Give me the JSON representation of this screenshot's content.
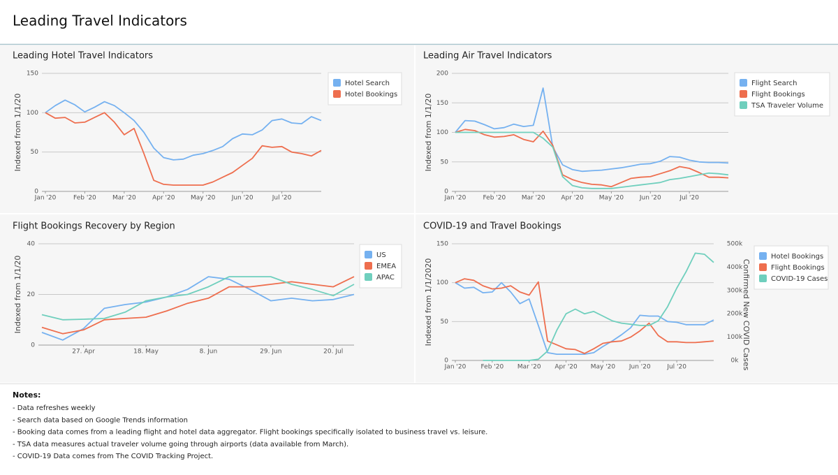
{
  "header": {
    "title": "Leading Travel Indicators"
  },
  "chart_data": [
    {
      "type": "line",
      "title": "Leading Hotel Travel Indicators",
      "y_label": "Indexed from 1/1/20",
      "categories": [
        "Jan '20",
        null,
        null,
        null,
        "Feb '20",
        null,
        null,
        null,
        "Mar '20",
        null,
        null,
        null,
        "Apr '20",
        null,
        null,
        null,
        "May '20",
        null,
        null,
        null,
        "Jun '20",
        null,
        null,
        null,
        "Jul '20",
        null,
        null,
        null,
        null
      ],
      "series": [
        {
          "name": "Hotel Search",
          "color": "#75b1f0",
          "values": [
            100,
            109,
            116,
            110,
            101,
            107,
            114,
            109,
            100,
            90,
            75,
            55,
            43,
            40,
            41,
            46,
            48,
            52,
            57,
            67,
            73,
            72,
            78,
            90,
            92,
            87,
            86,
            95,
            90
          ]
        },
        {
          "name": "Hotel Bookings",
          "color": "#ee6e4e",
          "values": [
            100,
            93,
            94,
            87,
            88,
            94,
            100,
            88,
            72,
            80,
            48,
            14,
            9,
            8,
            8,
            8,
            8,
            12,
            18,
            24,
            33,
            42,
            58,
            56,
            57,
            50,
            48,
            45,
            52
          ]
        }
      ],
      "ylim": [
        0,
        150
      ],
      "yticks": [
        0,
        50,
        100,
        150
      ],
      "grid": true,
      "legend": "right"
    },
    {
      "type": "line",
      "title": "Leading Air Travel Indicators",
      "y_label": "Indexed from 1/1/20",
      "categories": [
        "Jan '20",
        null,
        null,
        null,
        "Feb '20",
        null,
        null,
        null,
        "Mar '20",
        null,
        null,
        null,
        "Apr '20",
        null,
        null,
        null,
        "May '20",
        null,
        null,
        null,
        "Jun '20",
        null,
        null,
        null,
        "Jul '20",
        null,
        null,
        null,
        null
      ],
      "series": [
        {
          "name": "Flight Search",
          "color": "#75b1f0",
          "values": [
            100,
            120,
            119,
            113,
            106,
            108,
            114,
            110,
            112,
            175,
            75,
            45,
            37,
            34,
            35,
            36,
            38,
            40,
            43,
            46,
            47,
            51,
            59,
            58,
            53,
            50,
            49,
            49,
            48
          ]
        },
        {
          "name": "Flight Bookings",
          "color": "#ee6e4e",
          "values": [
            100,
            105,
            103,
            96,
            92,
            93,
            96,
            88,
            84,
            102,
            78,
            28,
            20,
            15,
            12,
            11,
            8,
            15,
            22,
            24,
            25,
            30,
            35,
            42,
            39,
            32,
            24,
            24,
            23
          ]
        },
        {
          "name": "TSA Traveler Volume",
          "color": "#6fcfbd",
          "values": [
            100,
            100,
            100,
            100,
            100,
            100,
            100,
            100,
            100,
            90,
            75,
            25,
            10,
            6,
            5,
            5,
            5,
            7,
            9,
            11,
            13,
            15,
            20,
            22,
            25,
            28,
            31,
            30,
            28
          ]
        }
      ],
      "ylim": [
        0,
        200
      ],
      "yticks": [
        0,
        50,
        100,
        150,
        200
      ],
      "grid": true,
      "legend": "right"
    },
    {
      "type": "line",
      "title": "Flight Bookings Recovery by Region",
      "y_label": "Indexed from 1/1/20",
      "categories": [
        null,
        null,
        "27. Apr",
        null,
        null,
        "18. May",
        null,
        null,
        "8. Jun",
        null,
        null,
        "29. Jun",
        null,
        null,
        "20. Jul",
        null
      ],
      "series": [
        {
          "name": "US",
          "color": "#75b1f0",
          "values": [
            5,
            2,
            6.5,
            14.5,
            16,
            17,
            19,
            22,
            27,
            26,
            22,
            17.5,
            18.5,
            17.5,
            18,
            20
          ]
        },
        {
          "name": "EMEA",
          "color": "#ee6e4e",
          "values": [
            7,
            4.5,
            6,
            10,
            10.5,
            11,
            13.5,
            16.5,
            18.5,
            23,
            23,
            24,
            25,
            24,
            23,
            27
          ]
        },
        {
          "name": "APAC",
          "color": "#6fcfbd",
          "values": [
            12,
            10,
            10.2,
            10.5,
            13,
            17.5,
            19,
            20,
            23,
            27,
            27,
            27,
            24,
            22,
            19.5,
            24
          ]
        }
      ],
      "ylim": [
        0,
        40
      ],
      "yticks": [
        0,
        20,
        40
      ],
      "grid": true,
      "legend": "right"
    },
    {
      "type": "line",
      "title": "COVID-19 and Travel Bookings",
      "y_label": "Indexed from 1/1/2020",
      "y2_label": "Confirmed New COVID Cases",
      "categories": [
        "Jan '20",
        null,
        null,
        null,
        "Feb '20",
        null,
        null,
        null,
        "Mar '20",
        null,
        null,
        null,
        "Apr '20",
        null,
        null,
        null,
        "May '20",
        null,
        null,
        null,
        "Jun '20",
        null,
        null,
        null,
        "Jul '20",
        null,
        null,
        null,
        null
      ],
      "series": [
        {
          "name": "Hotel Bookings",
          "color": "#75b1f0",
          "values": [
            100,
            93,
            94,
            87,
            88,
            100,
            88,
            73,
            79,
            45,
            10,
            8,
            8,
            8,
            8,
            10,
            18,
            25,
            33,
            42,
            58,
            57,
            57,
            50,
            49,
            46,
            46,
            46,
            52
          ]
        },
        {
          "name": "Flight Bookings",
          "color": "#ee6e4e",
          "values": [
            100,
            105,
            103,
            96,
            92,
            93,
            96,
            88,
            84,
            101,
            25,
            20,
            15,
            14,
            9,
            15,
            22,
            24,
            25,
            30,
            38,
            48,
            32,
            24,
            24,
            23,
            23,
            24,
            25
          ]
        },
        {
          "name": "COVID-19 Cases",
          "color": "#6fcfbd",
          "axis": "y2",
          "values": [
            null,
            null,
            null,
            0,
            0,
            0,
            0,
            0,
            0,
            5000,
            40000,
            130000,
            200000,
            220000,
            200000,
            210000,
            190000,
            170000,
            160000,
            155000,
            150000,
            150000,
            170000,
            230000,
            310000,
            380000,
            460000,
            455000,
            420000
          ]
        }
      ],
      "ylim": [
        0,
        150
      ],
      "yticks": [
        0,
        50,
        100,
        150
      ],
      "y2lim": [
        0,
        500000
      ],
      "y2ticks": [
        {
          "value": 0,
          "label": "0k"
        },
        {
          "value": 100000,
          "label": "100k"
        },
        {
          "value": 200000,
          "label": "200k"
        },
        {
          "value": 300000,
          "label": "300k"
        },
        {
          "value": 400000,
          "label": "400k"
        },
        {
          "value": 500000,
          "label": "500k"
        }
      ],
      "grid": true,
      "legend": "right"
    }
  ],
  "notes": {
    "title": "Notes:",
    "items": [
      "- Data refreshes weekly",
      "- Search data based on Google Trends information",
      "- Booking data comes from a leading flight and hotel data aggregator. Flight bookings specifically isolated to business travel vs. leisure.",
      "- TSA data measures actual traveler volume going through airports (data available from March).",
      "- COVID-19 Data comes from The COVID Tracking Project."
    ]
  }
}
